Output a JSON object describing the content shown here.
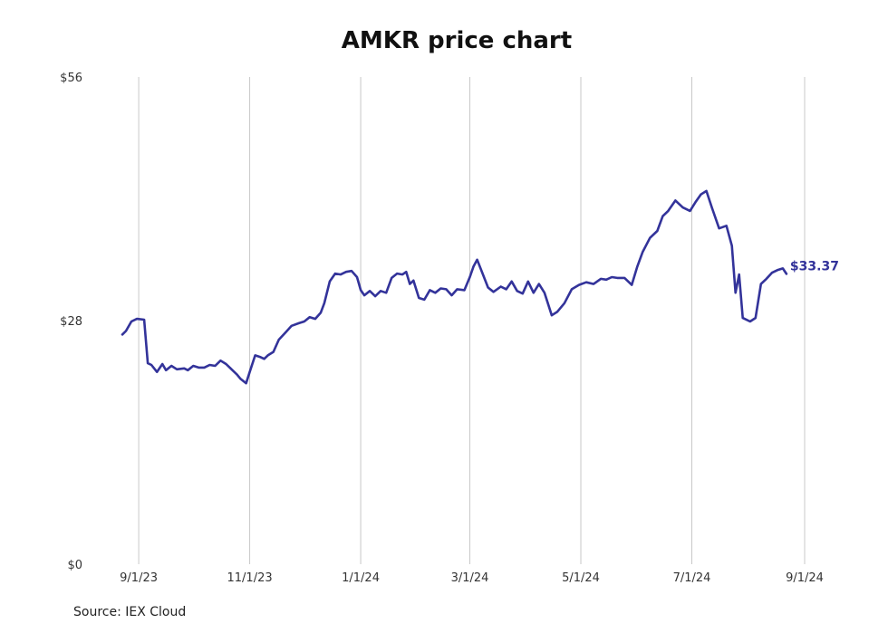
{
  "chart_data": {
    "type": "line",
    "title": "AMKR price chart",
    "source": "Source: IEX Cloud",
    "xlabel": "",
    "ylabel": "",
    "y_ticks": [
      {
        "value": 0,
        "label": "$0"
      },
      {
        "value": 28,
        "label": "$28"
      },
      {
        "value": 56,
        "label": "$56"
      }
    ],
    "ylim": [
      0,
      56
    ],
    "x_ticks": [
      {
        "date": "2023-09-01",
        "label": "9/1/23"
      },
      {
        "date": "2023-11-01",
        "label": "11/1/23"
      },
      {
        "date": "2024-01-01",
        "label": "1/1/24"
      },
      {
        "date": "2024-03-01",
        "label": "3/1/24"
      },
      {
        "date": "2024-05-01",
        "label": "5/1/24"
      },
      {
        "date": "2024-07-01",
        "label": "7/1/24"
      },
      {
        "date": "2024-09-01",
        "label": "9/1/24"
      }
    ],
    "xlim": [
      "2023-08-22",
      "2024-09-01"
    ],
    "grid": "vertical",
    "line_color": "#33339a",
    "end_label": "$33.37",
    "series": [
      {
        "points": [
          [
            "2023-08-23",
            26.4
          ],
          [
            "2023-08-25",
            26.8
          ],
          [
            "2023-08-28",
            27.9
          ],
          [
            "2023-08-31",
            28.2
          ],
          [
            "2023-09-04",
            28.1
          ],
          [
            "2023-09-06",
            23.1
          ],
          [
            "2023-09-08",
            22.9
          ],
          [
            "2023-09-11",
            22.1
          ],
          [
            "2023-09-14",
            23.0
          ],
          [
            "2023-09-16",
            22.3
          ],
          [
            "2023-09-19",
            22.8
          ],
          [
            "2023-09-22",
            22.4
          ],
          [
            "2023-09-26",
            22.5
          ],
          [
            "2023-09-28",
            22.3
          ],
          [
            "2023-10-01",
            22.8
          ],
          [
            "2023-10-04",
            22.6
          ],
          [
            "2023-10-07",
            22.6
          ],
          [
            "2023-10-10",
            22.9
          ],
          [
            "2023-10-13",
            22.8
          ],
          [
            "2023-10-16",
            23.4
          ],
          [
            "2023-10-19",
            23.0
          ],
          [
            "2023-10-22",
            22.4
          ],
          [
            "2023-10-25",
            21.8
          ],
          [
            "2023-10-27",
            21.3
          ],
          [
            "2023-10-30",
            20.8
          ],
          [
            "2023-11-01",
            22.1
          ],
          [
            "2023-11-04",
            24.0
          ],
          [
            "2023-11-07",
            23.8
          ],
          [
            "2023-11-09",
            23.6
          ],
          [
            "2023-11-11",
            24.0
          ],
          [
            "2023-11-14",
            24.4
          ],
          [
            "2023-11-17",
            25.8
          ],
          [
            "2023-11-21",
            26.7
          ],
          [
            "2023-11-24",
            27.4
          ],
          [
            "2023-11-28",
            27.7
          ],
          [
            "2023-12-01",
            27.9
          ],
          [
            "2023-12-04",
            28.4
          ],
          [
            "2023-12-07",
            28.2
          ],
          [
            "2023-12-10",
            28.9
          ],
          [
            "2023-12-12",
            30.0
          ],
          [
            "2023-12-15",
            32.5
          ],
          [
            "2023-12-18",
            33.4
          ],
          [
            "2023-12-21",
            33.3
          ],
          [
            "2023-12-24",
            33.6
          ],
          [
            "2023-12-27",
            33.7
          ],
          [
            "2023-12-30",
            33.0
          ],
          [
            "2024-01-01",
            31.5
          ],
          [
            "2024-01-03",
            30.9
          ],
          [
            "2024-01-06",
            31.4
          ],
          [
            "2024-01-09",
            30.8
          ],
          [
            "2024-01-12",
            31.4
          ],
          [
            "2024-01-15",
            31.2
          ],
          [
            "2024-01-18",
            32.9
          ],
          [
            "2024-01-21",
            33.4
          ],
          [
            "2024-01-24",
            33.3
          ],
          [
            "2024-01-26",
            33.6
          ],
          [
            "2024-01-28",
            32.2
          ],
          [
            "2024-01-30",
            32.6
          ],
          [
            "2024-02-02",
            30.6
          ],
          [
            "2024-02-05",
            30.4
          ],
          [
            "2024-02-08",
            31.5
          ],
          [
            "2024-02-11",
            31.2
          ],
          [
            "2024-02-14",
            31.7
          ],
          [
            "2024-02-17",
            31.6
          ],
          [
            "2024-02-20",
            30.9
          ],
          [
            "2024-02-23",
            31.6
          ],
          [
            "2024-02-27",
            31.5
          ],
          [
            "2024-03-01",
            33.0
          ],
          [
            "2024-03-03",
            34.2
          ],
          [
            "2024-03-05",
            35.0
          ],
          [
            "2024-03-08",
            33.4
          ],
          [
            "2024-03-11",
            31.8
          ],
          [
            "2024-03-14",
            31.3
          ],
          [
            "2024-03-18",
            31.9
          ],
          [
            "2024-03-21",
            31.6
          ],
          [
            "2024-03-24",
            32.5
          ],
          [
            "2024-03-27",
            31.4
          ],
          [
            "2024-03-30",
            31.1
          ],
          [
            "2024-04-02",
            32.5
          ],
          [
            "2024-04-05",
            31.2
          ],
          [
            "2024-04-08",
            32.2
          ],
          [
            "2024-04-11",
            31.2
          ],
          [
            "2024-04-15",
            28.6
          ],
          [
            "2024-04-18",
            29.0
          ],
          [
            "2024-04-22",
            30.0
          ],
          [
            "2024-04-26",
            31.6
          ],
          [
            "2024-04-30",
            32.1
          ],
          [
            "2024-05-04",
            32.4
          ],
          [
            "2024-05-08",
            32.2
          ],
          [
            "2024-05-12",
            32.8
          ],
          [
            "2024-05-15",
            32.7
          ],
          [
            "2024-05-18",
            33.0
          ],
          [
            "2024-05-21",
            32.9
          ],
          [
            "2024-05-25",
            32.9
          ],
          [
            "2024-05-29",
            32.1
          ],
          [
            "2024-06-01",
            34.2
          ],
          [
            "2024-06-04",
            35.9
          ],
          [
            "2024-06-08",
            37.5
          ],
          [
            "2024-06-12",
            38.3
          ],
          [
            "2024-06-15",
            40.0
          ],
          [
            "2024-06-18",
            40.6
          ],
          [
            "2024-06-22",
            41.8
          ],
          [
            "2024-06-26",
            41.0
          ],
          [
            "2024-06-30",
            40.6
          ],
          [
            "2024-07-03",
            41.6
          ],
          [
            "2024-07-06",
            42.5
          ],
          [
            "2024-07-09",
            42.9
          ],
          [
            "2024-07-12",
            41.0
          ],
          [
            "2024-07-16",
            38.6
          ],
          [
            "2024-07-20",
            38.9
          ],
          [
            "2024-07-23",
            36.6
          ],
          [
            "2024-07-25",
            31.2
          ],
          [
            "2024-07-27",
            33.3
          ],
          [
            "2024-07-29",
            28.3
          ],
          [
            "2024-08-02",
            27.9
          ],
          [
            "2024-08-05",
            28.3
          ],
          [
            "2024-08-08",
            32.2
          ],
          [
            "2024-08-11",
            32.8
          ],
          [
            "2024-08-14",
            33.5
          ],
          [
            "2024-08-17",
            33.8
          ],
          [
            "2024-08-20",
            34.0
          ],
          [
            "2024-08-22",
            33.37
          ]
        ]
      }
    ]
  }
}
